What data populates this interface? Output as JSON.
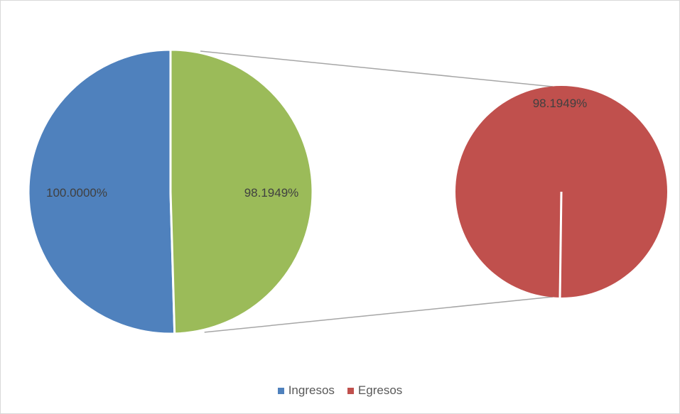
{
  "chart_data": {
    "type": "pie",
    "subtype": "pie-of-pie",
    "primary_pie": {
      "slices": [
        {
          "label": "100.0000%",
          "value": 100.0,
          "series": "Ingresos",
          "color": "#4f81bd"
        },
        {
          "label": "98.1949%",
          "value": 98.1949,
          "series": "other",
          "color": "#9bbb59"
        }
      ]
    },
    "secondary_pie": {
      "slices": [
        {
          "label": "98.1949%",
          "value": 98.1949,
          "series": "Egresos",
          "color": "#c0504d"
        }
      ]
    },
    "legend": {
      "placement": "bottom",
      "entries": [
        {
          "name": "Ingresos",
          "color": "#4f81bd"
        },
        {
          "name": "Egresos",
          "color": "#c0504d"
        }
      ]
    },
    "connector_color": "#a6a6a6"
  }
}
